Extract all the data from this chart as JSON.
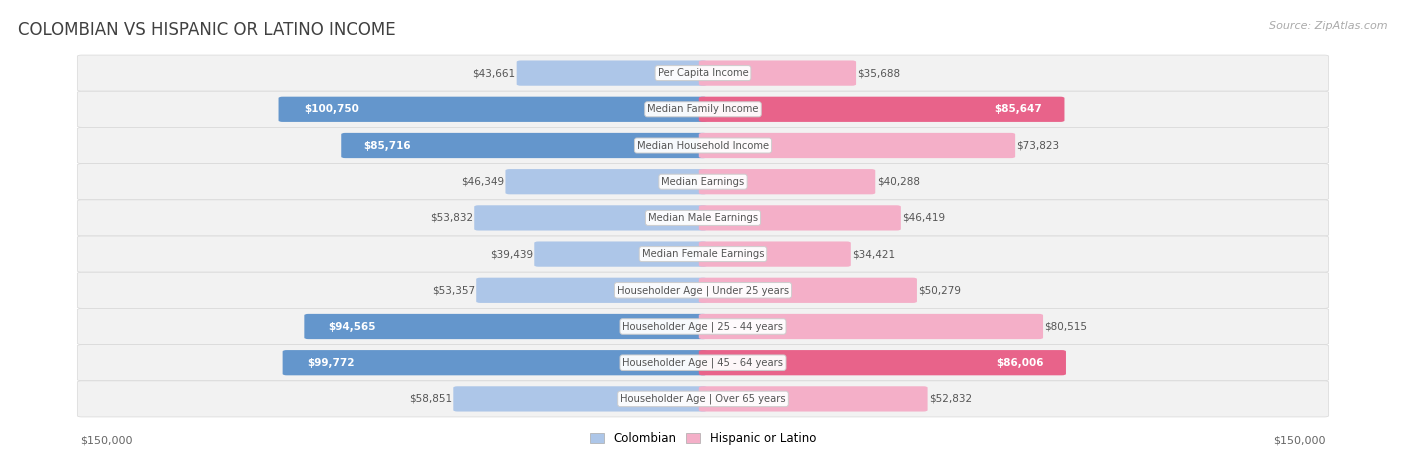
{
  "title": "COLOMBIAN VS HISPANIC OR LATINO INCOME",
  "source": "Source: ZipAtlas.com",
  "categories": [
    "Per Capita Income",
    "Median Family Income",
    "Median Household Income",
    "Median Earnings",
    "Median Male Earnings",
    "Median Female Earnings",
    "Householder Age | Under 25 years",
    "Householder Age | 25 - 44 years",
    "Householder Age | 45 - 64 years",
    "Householder Age | Over 65 years"
  ],
  "colombian_values": [
    43661,
    100750,
    85716,
    46349,
    53832,
    39439,
    53357,
    94565,
    99772,
    58851
  ],
  "hispanic_values": [
    35688,
    85647,
    73823,
    40288,
    46419,
    34421,
    50279,
    80515,
    86006,
    52832
  ],
  "colombian_labels": [
    "$43,661",
    "$100,750",
    "$85,716",
    "$46,349",
    "$53,832",
    "$39,439",
    "$53,357",
    "$94,565",
    "$99,772",
    "$58,851"
  ],
  "hispanic_labels": [
    "$35,688",
    "$85,647",
    "$73,823",
    "$40,288",
    "$46,419",
    "$34,421",
    "$50,279",
    "$80,515",
    "$86,006",
    "$52,832"
  ],
  "max_value": 150000,
  "colombian_color_light": "#adc6e8",
  "colombian_color_dark": "#6496cc",
  "hispanic_color_light": "#f4afc8",
  "hispanic_color_dark": "#e8638a",
  "row_bg_color": "#f2f2f2",
  "row_border_color": "#d8d8d8",
  "title_color": "#404040",
  "source_color": "#aaaaaa",
  "label_dark": "#555555",
  "label_white": "#ffffff",
  "center_label_color": "#555555",
  "label_threshold": 82500,
  "axis_label_color": "#666666",
  "legend_col_label": "Colombian",
  "legend_his_label": "Hispanic or Latino"
}
